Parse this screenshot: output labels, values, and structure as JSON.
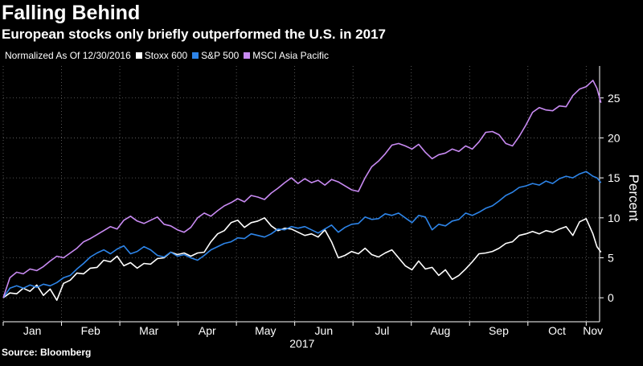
{
  "chart_data": {
    "type": "line",
    "title": "Falling Behind",
    "subtitle": "European stocks only briefly outperformed the U.S. in 2017",
    "legend_prefix": "Normalized As Of 12/30/2016",
    "xlabel": "2017",
    "ylabel": "Percent",
    "ylim": [
      -3,
      29
    ],
    "yticks": [
      0,
      5,
      10,
      15,
      20,
      25
    ],
    "xlim": [
      0,
      44.5
    ],
    "months": [
      "Jan",
      "Feb",
      "Mar",
      "Apr",
      "May",
      "Jun",
      "Jul",
      "Aug",
      "Sep",
      "Oct",
      "Nov"
    ],
    "x_unit": "weeks since 12/30/2016",
    "series": [
      {
        "name": "Stoxx 600",
        "color": "#ffffff",
        "points": [
          [
            0,
            0
          ],
          [
            0.5,
            0.6
          ],
          [
            1,
            0.5
          ],
          [
            1.5,
            1.2
          ],
          [
            2,
            0.8
          ],
          [
            2.5,
            1.6
          ],
          [
            3,
            0.3
          ],
          [
            3.5,
            1.1
          ],
          [
            4,
            -0.3
          ],
          [
            4.5,
            1.8
          ],
          [
            5,
            2.2
          ],
          [
            5.5,
            3.1
          ],
          [
            6,
            3.0
          ],
          [
            6.5,
            3.7
          ],
          [
            7,
            3.8
          ],
          [
            7.5,
            4.7
          ],
          [
            8,
            4.5
          ],
          [
            8.5,
            5.2
          ],
          [
            9,
            4.0
          ],
          [
            9.5,
            4.4
          ],
          [
            10,
            3.7
          ],
          [
            10.5,
            4.3
          ],
          [
            11,
            4.2
          ],
          [
            11.5,
            4.9
          ],
          [
            12,
            5.0
          ],
          [
            12.5,
            5.7
          ],
          [
            13,
            5.4
          ],
          [
            13.5,
            5.6
          ],
          [
            14,
            5.2
          ],
          [
            14.5,
            5.6
          ],
          [
            15,
            5.7
          ],
          [
            15.5,
            7.0
          ],
          [
            16,
            8.0
          ],
          [
            16.5,
            8.4
          ],
          [
            17,
            9.4
          ],
          [
            17.5,
            9.7
          ],
          [
            18,
            8.8
          ],
          [
            18.5,
            9.4
          ],
          [
            19,
            9.6
          ],
          [
            19.5,
            10.0
          ],
          [
            20,
            9.0
          ],
          [
            20.5,
            8.4
          ],
          [
            21,
            8.7
          ],
          [
            21.5,
            8.6
          ],
          [
            22,
            8.2
          ],
          [
            22.5,
            7.8
          ],
          [
            23,
            8.0
          ],
          [
            23.5,
            7.6
          ],
          [
            24,
            8.5
          ],
          [
            24.5,
            7.0
          ],
          [
            25,
            5.0
          ],
          [
            25.5,
            5.3
          ],
          [
            26,
            5.8
          ],
          [
            26.5,
            5.5
          ],
          [
            27,
            6.2
          ],
          [
            27.5,
            5.4
          ],
          [
            28,
            5.1
          ],
          [
            28.5,
            5.6
          ],
          [
            29,
            6.0
          ],
          [
            29.5,
            5.0
          ],
          [
            30,
            4.0
          ],
          [
            30.5,
            3.5
          ],
          [
            31,
            4.6
          ],
          [
            31.5,
            3.6
          ],
          [
            32,
            3.8
          ],
          [
            32.5,
            2.8
          ],
          [
            33,
            3.5
          ],
          [
            33.5,
            2.3
          ],
          [
            34,
            2.8
          ],
          [
            34.5,
            3.6
          ],
          [
            35,
            4.5
          ],
          [
            35.5,
            5.5
          ],
          [
            36,
            5.6
          ],
          [
            36.5,
            5.8
          ],
          [
            37,
            6.2
          ],
          [
            37.5,
            6.8
          ],
          [
            38,
            7.0
          ],
          [
            38.5,
            7.8
          ],
          [
            39,
            8.0
          ],
          [
            39.5,
            8.3
          ],
          [
            40,
            8.0
          ],
          [
            40.5,
            8.4
          ],
          [
            41,
            8.2
          ],
          [
            41.5,
            8.6
          ],
          [
            42,
            8.9
          ],
          [
            42.5,
            7.8
          ],
          [
            43,
            9.5
          ],
          [
            43.5,
            9.9
          ],
          [
            44,
            8.0
          ],
          [
            44.3,
            6.4
          ],
          [
            44.6,
            5.7
          ]
        ]
      },
      {
        "name": "S&P 500",
        "color": "#2d84e8",
        "points": [
          [
            0,
            0
          ],
          [
            0.5,
            1.2
          ],
          [
            1,
            1.5
          ],
          [
            1.5,
            1.2
          ],
          [
            2,
            1.6
          ],
          [
            2.5,
            1.3
          ],
          [
            3,
            1.7
          ],
          [
            3.5,
            1.5
          ],
          [
            4,
            1.9
          ],
          [
            4.5,
            2.5
          ],
          [
            5,
            2.8
          ],
          [
            5.5,
            3.6
          ],
          [
            6,
            4.3
          ],
          [
            6.5,
            5.1
          ],
          [
            7,
            5.6
          ],
          [
            7.5,
            6.0
          ],
          [
            8,
            5.5
          ],
          [
            8.5,
            6.1
          ],
          [
            9,
            6.5
          ],
          [
            9.5,
            5.5
          ],
          [
            10,
            5.8
          ],
          [
            10.5,
            6.4
          ],
          [
            11,
            6.0
          ],
          [
            11.5,
            5.3
          ],
          [
            12,
            5.1
          ],
          [
            12.5,
            5.7
          ],
          [
            13,
            5.2
          ],
          [
            13.5,
            5.4
          ],
          [
            14,
            5.0
          ],
          [
            14.5,
            4.7
          ],
          [
            15,
            5.3
          ],
          [
            15.5,
            6.0
          ],
          [
            16,
            6.4
          ],
          [
            16.5,
            6.8
          ],
          [
            17,
            7.0
          ],
          [
            17.5,
            7.5
          ],
          [
            18,
            7.4
          ],
          [
            18.5,
            8.0
          ],
          [
            19,
            7.8
          ],
          [
            19.5,
            7.6
          ],
          [
            20,
            8.0
          ],
          [
            20.5,
            8.6
          ],
          [
            21,
            8.5
          ],
          [
            21.5,
            8.9
          ],
          [
            22,
            8.7
          ],
          [
            22.5,
            8.9
          ],
          [
            23,
            8.5
          ],
          [
            23.5,
            8.1
          ],
          [
            24,
            8.6
          ],
          [
            24.5,
            9.1
          ],
          [
            25,
            8.2
          ],
          [
            25.5,
            8.8
          ],
          [
            26,
            9.2
          ],
          [
            26.5,
            9.3
          ],
          [
            27,
            10.1
          ],
          [
            27.5,
            9.8
          ],
          [
            28,
            9.9
          ],
          [
            28.5,
            10.5
          ],
          [
            29,
            10.3
          ],
          [
            29.5,
            10.6
          ],
          [
            30,
            10.0
          ],
          [
            30.5,
            9.4
          ],
          [
            31,
            10.3
          ],
          [
            31.5,
            10.1
          ],
          [
            32,
            8.5
          ],
          [
            32.5,
            9.2
          ],
          [
            33,
            9.0
          ],
          [
            33.5,
            9.6
          ],
          [
            34,
            9.8
          ],
          [
            34.5,
            10.6
          ],
          [
            35,
            10.3
          ],
          [
            35.5,
            10.7
          ],
          [
            36,
            11.2
          ],
          [
            36.5,
            11.5
          ],
          [
            37,
            12.1
          ],
          [
            37.5,
            12.8
          ],
          [
            38,
            13.2
          ],
          [
            38.5,
            13.8
          ],
          [
            39,
            14.0
          ],
          [
            39.5,
            14.3
          ],
          [
            40,
            14.1
          ],
          [
            40.5,
            14.6
          ],
          [
            41,
            14.3
          ],
          [
            41.5,
            14.9
          ],
          [
            42,
            15.2
          ],
          [
            42.5,
            15.0
          ],
          [
            43,
            15.5
          ],
          [
            43.5,
            15.8
          ],
          [
            44,
            15.2
          ],
          [
            44.3,
            15.0
          ],
          [
            44.6,
            14.4
          ]
        ]
      },
      {
        "name": "MSCI Asia Pacific",
        "color": "#c88af2",
        "points": [
          [
            0,
            0
          ],
          [
            0.5,
            2.5
          ],
          [
            1,
            3.2
          ],
          [
            1.5,
            3.0
          ],
          [
            2,
            3.6
          ],
          [
            2.5,
            3.4
          ],
          [
            3,
            3.9
          ],
          [
            3.5,
            4.6
          ],
          [
            4,
            5.2
          ],
          [
            4.5,
            5.0
          ],
          [
            5,
            5.6
          ],
          [
            5.5,
            6.2
          ],
          [
            6,
            7.0
          ],
          [
            6.5,
            7.4
          ],
          [
            7,
            7.9
          ],
          [
            7.5,
            8.4
          ],
          [
            8,
            8.9
          ],
          [
            8.5,
            8.6
          ],
          [
            9,
            9.7
          ],
          [
            9.5,
            10.2
          ],
          [
            10,
            9.6
          ],
          [
            10.5,
            9.3
          ],
          [
            11,
            9.7
          ],
          [
            11.5,
            10.1
          ],
          [
            12,
            9.2
          ],
          [
            12.5,
            9.0
          ],
          [
            13,
            8.5
          ],
          [
            13.5,
            8.2
          ],
          [
            14,
            8.8
          ],
          [
            14.5,
            10.0
          ],
          [
            15,
            10.6
          ],
          [
            15.5,
            10.2
          ],
          [
            16,
            10.9
          ],
          [
            16.5,
            11.5
          ],
          [
            17,
            11.9
          ],
          [
            17.5,
            12.4
          ],
          [
            18,
            12.0
          ],
          [
            18.5,
            12.8
          ],
          [
            19,
            12.6
          ],
          [
            19.5,
            12.3
          ],
          [
            20,
            13.1
          ],
          [
            20.5,
            13.7
          ],
          [
            21,
            14.4
          ],
          [
            21.5,
            15.0
          ],
          [
            22,
            14.3
          ],
          [
            22.5,
            14.9
          ],
          [
            23,
            14.4
          ],
          [
            23.5,
            14.7
          ],
          [
            24,
            14.1
          ],
          [
            24.5,
            14.8
          ],
          [
            25,
            14.5
          ],
          [
            25.5,
            14.0
          ],
          [
            26,
            13.5
          ],
          [
            26.5,
            13.3
          ],
          [
            27,
            15.0
          ],
          [
            27.5,
            16.4
          ],
          [
            28,
            17.1
          ],
          [
            28.5,
            18.0
          ],
          [
            29,
            19.1
          ],
          [
            29.5,
            19.3
          ],
          [
            30,
            19.0
          ],
          [
            30.5,
            18.6
          ],
          [
            31,
            19.2
          ],
          [
            31.5,
            18.2
          ],
          [
            32,
            17.4
          ],
          [
            32.5,
            17.9
          ],
          [
            33,
            18.1
          ],
          [
            33.5,
            18.6
          ],
          [
            34,
            18.3
          ],
          [
            34.5,
            19.0
          ],
          [
            35,
            18.6
          ],
          [
            35.5,
            19.5
          ],
          [
            36,
            20.7
          ],
          [
            36.5,
            20.8
          ],
          [
            37,
            20.4
          ],
          [
            37.5,
            19.3
          ],
          [
            38,
            19.0
          ],
          [
            38.5,
            20.2
          ],
          [
            39,
            21.6
          ],
          [
            39.5,
            23.2
          ],
          [
            40,
            23.8
          ],
          [
            40.5,
            23.5
          ],
          [
            41,
            23.4
          ],
          [
            41.5,
            24.0
          ],
          [
            42,
            23.9
          ],
          [
            42.5,
            25.3
          ],
          [
            43,
            26.1
          ],
          [
            43.5,
            26.4
          ],
          [
            44,
            27.2
          ],
          [
            44.3,
            26.2
          ],
          [
            44.6,
            24.4
          ]
        ]
      }
    ]
  },
  "source": "Source: Bloomberg"
}
